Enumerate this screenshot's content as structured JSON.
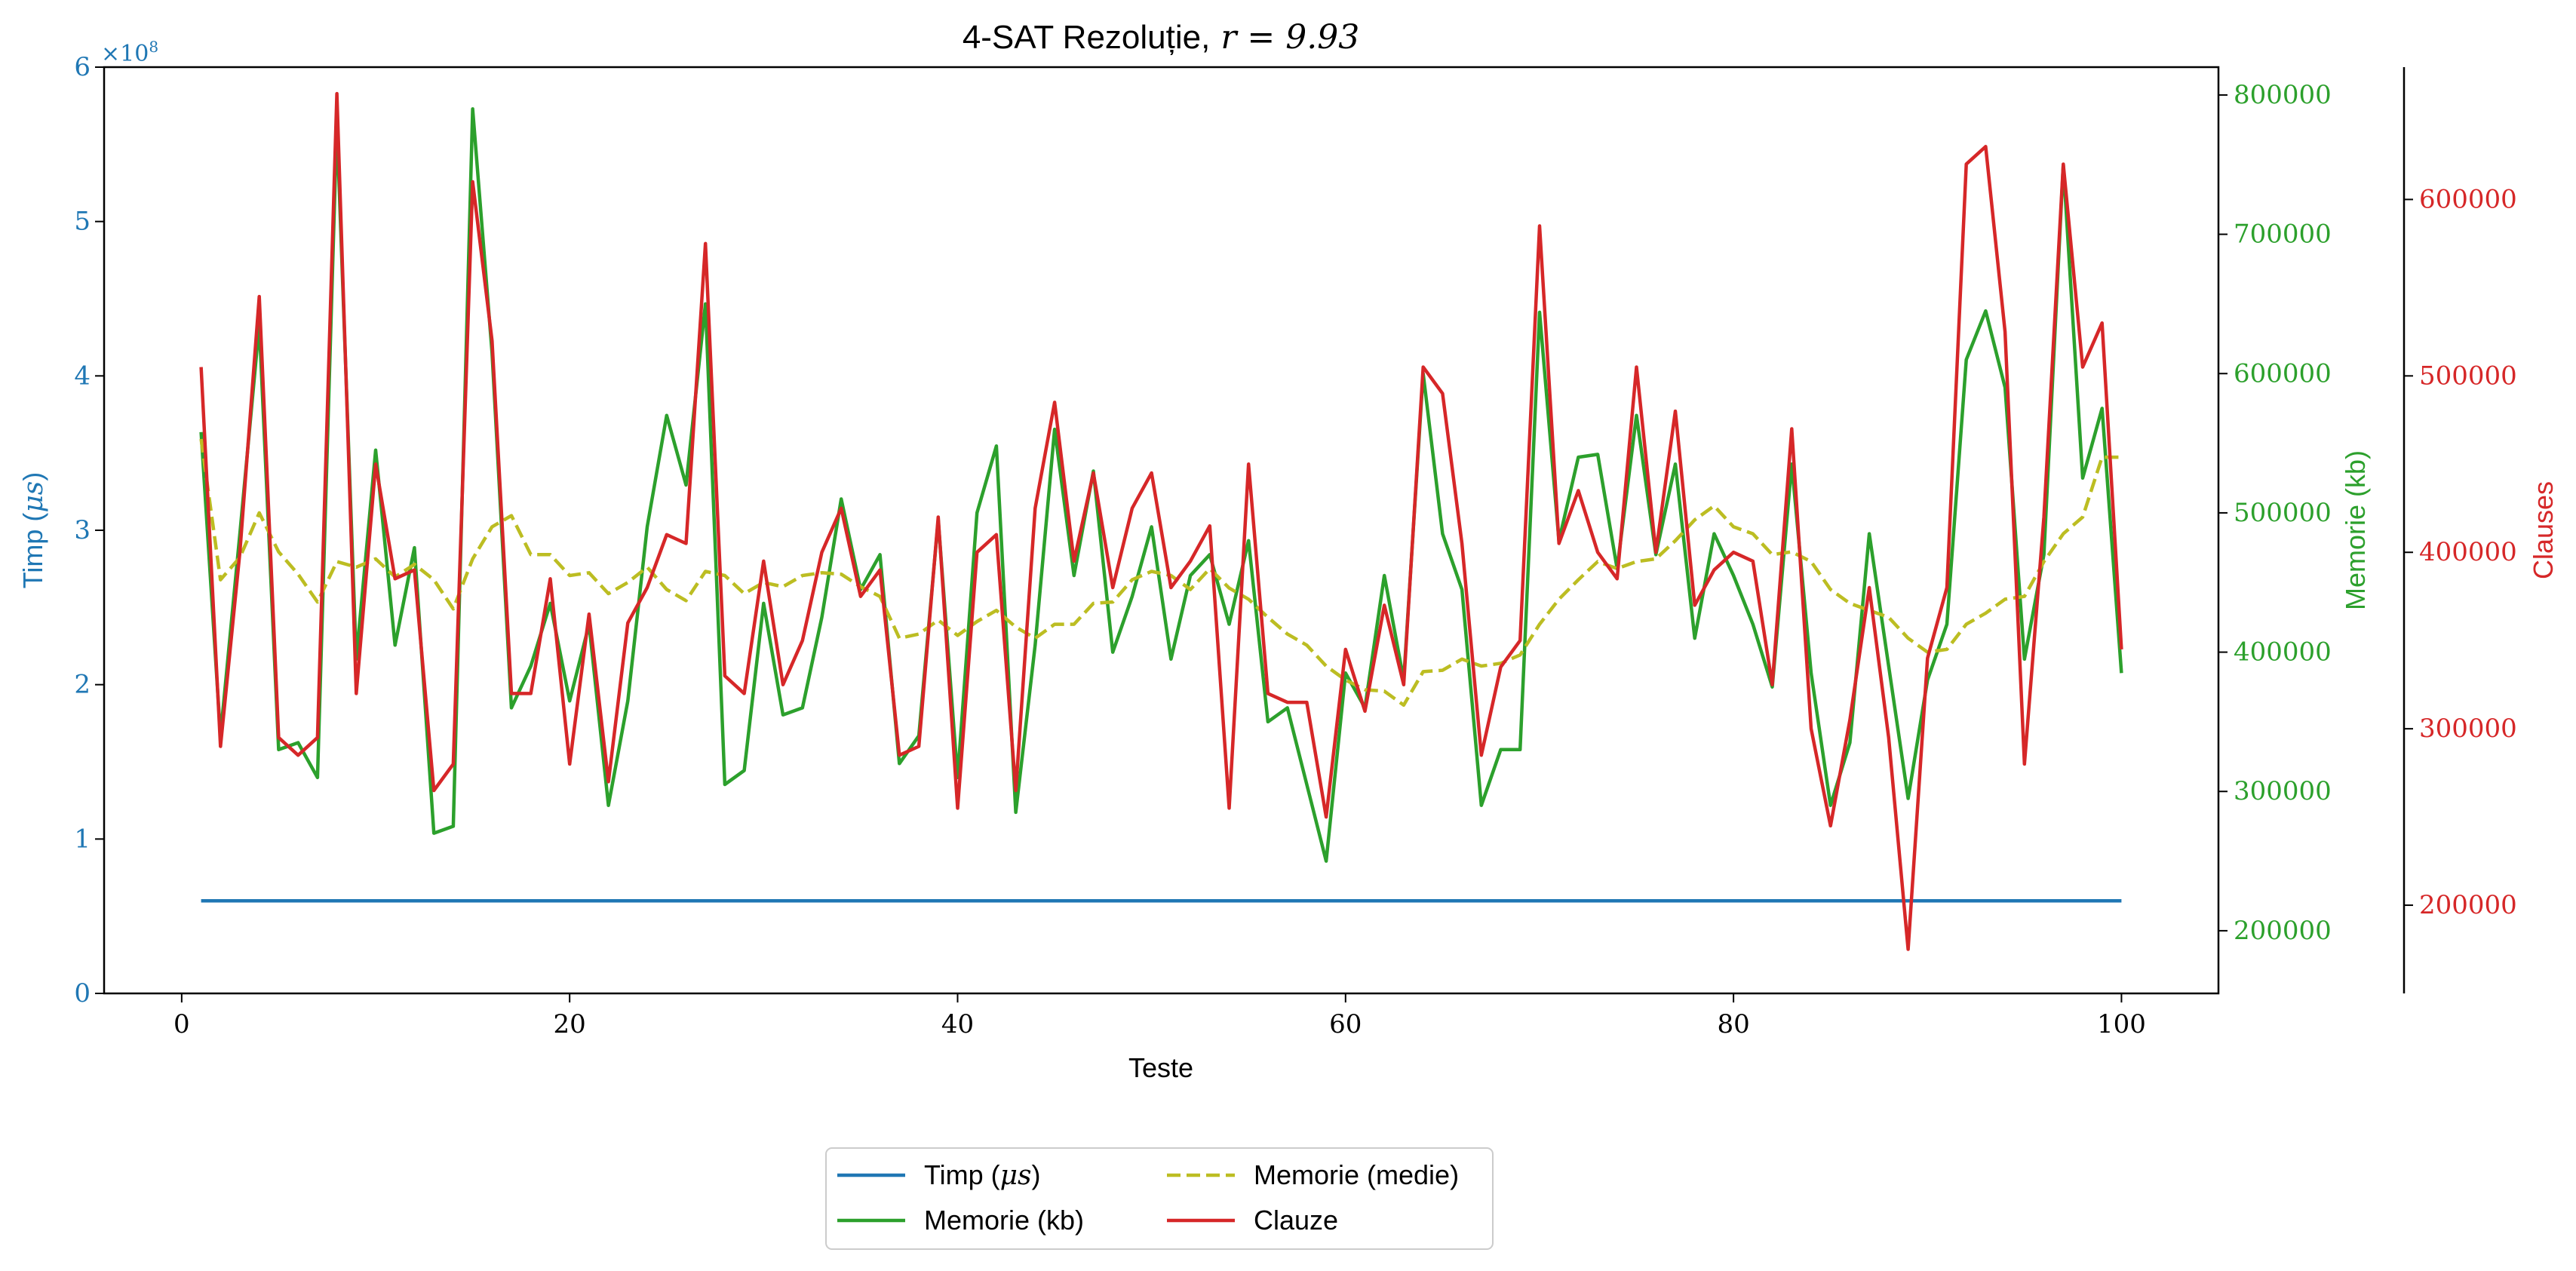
{
  "chart_data": {
    "type": "line",
    "title_text": "4-SAT Rezoluție,",
    "title_math": "r = 9.93",
    "xlabel": "Teste",
    "xlim": [
      -4,
      105
    ],
    "xticks": [
      0,
      20,
      40,
      60,
      80,
      100
    ],
    "axes": {
      "left": {
        "label_text": "Timp (",
        "label_math": "μs",
        "label_close": ")",
        "scale_label": "×10",
        "scale_exp": "8",
        "range": [
          0,
          6
        ],
        "ticks": [
          0,
          1,
          2,
          3,
          4,
          5,
          6
        ],
        "color": "#1f77b4"
      },
      "right1": {
        "label": "Memorie (kb)",
        "range": [
          155000,
          820000
        ],
        "ticks": [
          200000,
          300000,
          400000,
          500000,
          600000,
          700000,
          800000
        ],
        "color": "#2ca02c"
      },
      "right2": {
        "label": "Clauses",
        "range": [
          150000,
          675000
        ],
        "ticks": [
          200000,
          300000,
          400000,
          500000,
          600000
        ],
        "color": "#d62728"
      }
    },
    "x": [
      1,
      2,
      3,
      4,
      5,
      6,
      7,
      8,
      9,
      10,
      11,
      12,
      13,
      14,
      15,
      16,
      17,
      18,
      19,
      20,
      21,
      22,
      23,
      24,
      25,
      26,
      27,
      28,
      29,
      30,
      31,
      32,
      33,
      34,
      35,
      36,
      37,
      38,
      39,
      40,
      41,
      42,
      43,
      44,
      45,
      46,
      47,
      48,
      49,
      50,
      51,
      52,
      53,
      54,
      55,
      56,
      57,
      58,
      59,
      60,
      61,
      62,
      63,
      64,
      65,
      66,
      67,
      68,
      69,
      70,
      71,
      72,
      73,
      74,
      75,
      76,
      77,
      78,
      79,
      80,
      81,
      82,
      83,
      84,
      85,
      86,
      87,
      88,
      89,
      90,
      91,
      92,
      93,
      94,
      95,
      96,
      97,
      98,
      99,
      100
    ],
    "series": [
      {
        "name": "Timp",
        "name_math": "μs",
        "axis": "left",
        "style": "solid",
        "color": "#1f77b4",
        "values": [
          0.6,
          0.6,
          0.6,
          0.6,
          0.6,
          0.6,
          0.6,
          0.6,
          0.6,
          0.6,
          0.6,
          0.6,
          0.6,
          0.6,
          0.6,
          0.6,
          0.6,
          0.6,
          0.6,
          0.6,
          0.6,
          0.6,
          0.6,
          0.6,
          0.6,
          0.6,
          0.6,
          0.6,
          0.6,
          0.6,
          0.6,
          0.6,
          0.6,
          0.6,
          0.6,
          0.6,
          0.6,
          0.6,
          0.6,
          0.6,
          0.6,
          0.6,
          0.6,
          0.6,
          0.6,
          0.6,
          0.6,
          0.6,
          0.6,
          0.6,
          0.6,
          0.6,
          0.6,
          0.6,
          0.6,
          0.6,
          0.6,
          0.6,
          0.6,
          0.6,
          0.6,
          0.6,
          0.6,
          0.6,
          0.6,
          0.6,
          0.6,
          0.6,
          0.6,
          0.6,
          0.6,
          0.6,
          0.6,
          0.6,
          0.6,
          0.6,
          0.6,
          0.6,
          0.6,
          0.6,
          0.6,
          0.6,
          0.6,
          0.6,
          0.6,
          0.6,
          0.6,
          0.6,
          0.6,
          0.6,
          0.6,
          0.6,
          0.6,
          0.6,
          0.6,
          0.6,
          0.6,
          0.6,
          0.6,
          0.6
        ]
      },
      {
        "name": "Memorie (kb)",
        "axis": "right1",
        "style": "solid",
        "color": "#2ca02c",
        "values": [
          558000,
          340000,
          485000,
          635000,
          330000,
          335000,
          310000,
          780000,
          395000,
          545000,
          405000,
          475000,
          270000,
          275000,
          790000,
          615000,
          360000,
          390000,
          435000,
          365000,
          420000,
          290000,
          365000,
          490000,
          570000,
          520000,
          650000,
          305000,
          315000,
          435000,
          355000,
          360000,
          425000,
          510000,
          445000,
          470000,
          320000,
          340000,
          495000,
          310000,
          500000,
          548000,
          285000,
          405000,
          560000,
          455000,
          530000,
          400000,
          440000,
          490000,
          395000,
          455000,
          470000,
          420000,
          480000,
          350000,
          360000,
          305000,
          250000,
          385000,
          360000,
          455000,
          380000,
          600000,
          485000,
          445000,
          290000,
          330000,
          330000,
          644000,
          480000,
          540000,
          542000,
          460000,
          570000,
          470000,
          535000,
          410000,
          485000,
          455000,
          420000,
          375000,
          535000,
          385000,
          290000,
          335000,
          485000,
          390000,
          295000,
          380000,
          420000,
          610000,
          645000,
          590000,
          395000,
          470000,
          750000,
          525000,
          575000,
          385000
        ]
      },
      {
        "name": "Memorie (medie)",
        "axis": "right1",
        "style": "dashed",
        "color": "#bcbd22",
        "values": [
          553000,
          452000,
          468000,
          500000,
          472000,
          456000,
          436000,
          465000,
          461000,
          467000,
          454000,
          463000,
          452000,
          431000,
          467000,
          490000,
          498000,
          470000,
          470000,
          455000,
          457000,
          442000,
          450000,
          461000,
          445000,
          437000,
          458000,
          455000,
          442000,
          450000,
          447000,
          455000,
          457000,
          456000,
          447000,
          440000,
          410000,
          413000,
          423000,
          412000,
          422000,
          430000,
          418000,
          410000,
          420000,
          420000,
          435000,
          436000,
          452000,
          458000,
          455000,
          445000,
          460000,
          446000,
          438000,
          425000,
          413000,
          405000,
          390000,
          380000,
          373000,
          372000,
          362000,
          386000,
          387000,
          395000,
          390000,
          392000,
          398000,
          420000,
          438000,
          452000,
          465000,
          460000,
          465000,
          467000,
          480000,
          495000,
          505000,
          490000,
          485000,
          470000,
          472000,
          465000,
          445000,
          435000,
          430000,
          425000,
          410000,
          400000,
          402000,
          420000,
          428000,
          438000,
          440000,
          465000,
          485000,
          497000,
          540000,
          540000
        ]
      },
      {
        "name": "Clauze",
        "axis": "right2",
        "style": "solid",
        "color": "#d62728",
        "values": [
          505000,
          290000,
          400000,
          545000,
          295000,
          285000,
          295000,
          660000,
          320000,
          450000,
          385000,
          390000,
          265000,
          280000,
          610000,
          520000,
          320000,
          320000,
          385000,
          280000,
          365000,
          270000,
          360000,
          380000,
          410000,
          405000,
          575000,
          330000,
          320000,
          395000,
          325000,
          350000,
          400000,
          425000,
          375000,
          390000,
          285000,
          290000,
          420000,
          255000,
          400000,
          410000,
          265000,
          425000,
          485000,
          395000,
          445000,
          380000,
          425000,
          445000,
          380000,
          395000,
          415000,
          255000,
          450000,
          320000,
          315000,
          315000,
          250000,
          345000,
          310000,
          370000,
          325000,
          505000,
          490000,
          405000,
          285000,
          335000,
          350000,
          585000,
          405000,
          435000,
          400000,
          385000,
          505000,
          400000,
          480000,
          370000,
          390000,
          400000,
          395000,
          325000,
          470000,
          300000,
          245000,
          305000,
          380000,
          295000,
          175000,
          340000,
          380000,
          620000,
          630000,
          525000,
          280000,
          420000,
          620000,
          505000,
          530000,
          345000
        ]
      }
    ],
    "legend": {
      "placement": "bottom-center",
      "entries": [
        {
          "text": "Timp (",
          "math": "μs",
          "close": ")",
          "series": 0
        },
        {
          "text": "Memorie (medie)",
          "series": 2
        },
        {
          "text": "Memorie (kb)",
          "series": 1
        },
        {
          "text": "Clauze",
          "series": 3
        }
      ]
    },
    "grid": false
  }
}
